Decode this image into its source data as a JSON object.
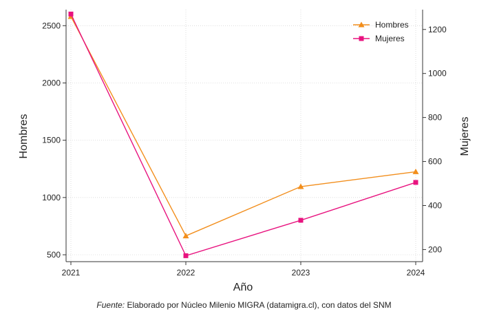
{
  "chart_data": {
    "type": "line",
    "x": [
      "2021",
      "2022",
      "2023",
      "2024"
    ],
    "xlabel": "Año",
    "series": [
      {
        "name": "Hombres",
        "axis": "left",
        "color": "#f28e1c",
        "marker": "triangle",
        "values": [
          2580,
          665,
          1095,
          1225
        ]
      },
      {
        "name": "Mujeres",
        "axis": "right",
        "color": "#e8137f",
        "marker": "square",
        "values": [
          1270,
          172,
          333,
          505
        ]
      }
    ],
    "y_left": {
      "label": "Hombres",
      "ticks": [
        500,
        1000,
        1500,
        2000,
        2500
      ],
      "lim": [
        440,
        2640
      ]
    },
    "y_right": {
      "label": "Mujeres",
      "ticks": [
        200,
        400,
        600,
        800,
        1000,
        1200
      ],
      "lim": [
        145,
        1290
      ]
    },
    "grid": true,
    "legend_position": "top-right"
  },
  "source": {
    "label": "Fuente:",
    "text": "Elaborado por Núcleo Milenio MIGRA (datamigra.cl), con datos del SNM"
  }
}
